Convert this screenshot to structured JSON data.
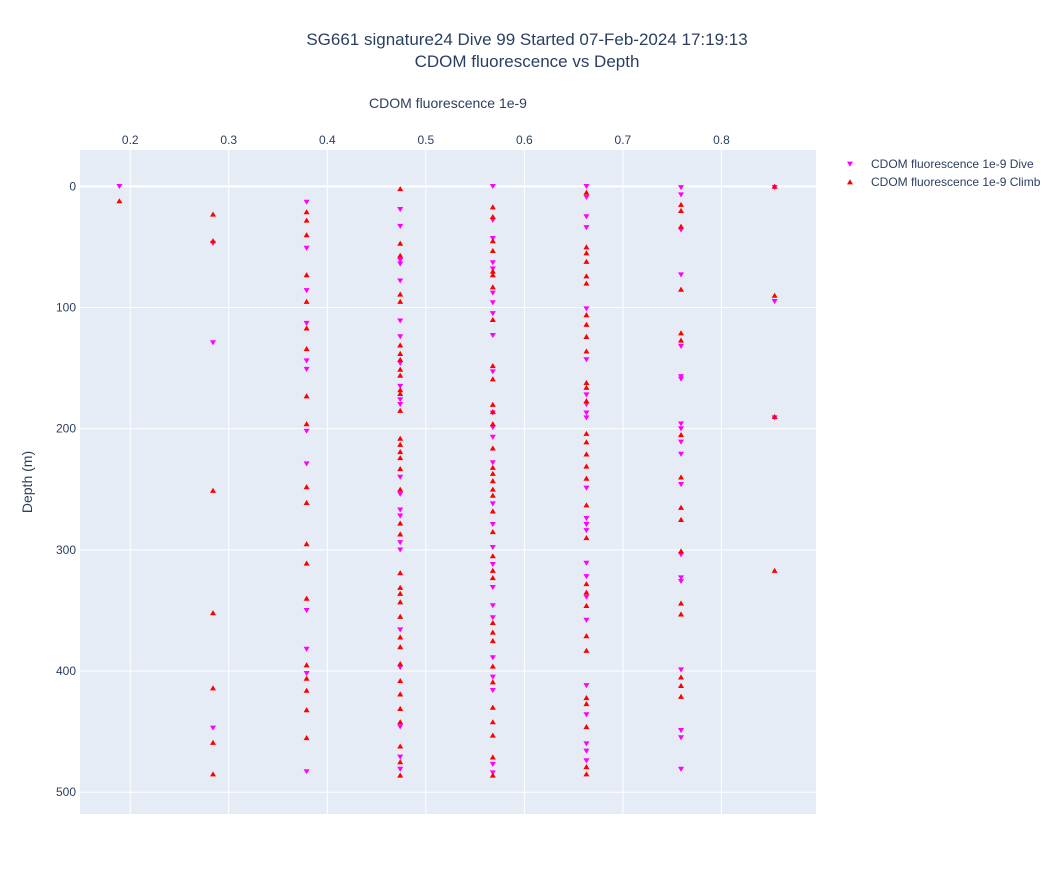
{
  "chart_data": {
    "type": "scatter",
    "title": "SG661 signature24 Dive 99 Started 07-Feb-2024 17:19:13",
    "subtitle": "CDOM fluorescence vs Depth",
    "xlabel": "CDOM fluorescence 1e-9",
    "ylabel": "Depth (m)",
    "xlim": [
      0.149,
      0.896
    ],
    "ylim": [
      518,
      -30
    ],
    "y_reversed": true,
    "x_axis_position": "top",
    "x_ticks": [
      0.2,
      0.3,
      0.4,
      0.5,
      0.6,
      0.7,
      0.8
    ],
    "x_tick_labels": [
      "0.2",
      "0.3",
      "0.4",
      "0.5",
      "0.6",
      "0.7",
      "0.8"
    ],
    "y_ticks": [
      0,
      100,
      200,
      300,
      400,
      500
    ],
    "y_tick_labels": [
      "0",
      "100",
      "200",
      "300",
      "400",
      "500"
    ],
    "grid": true,
    "legend_position": "top-right",
    "series": [
      {
        "name": "CDOM fluorescence 1e-9 Dive",
        "marker": "triangle-down",
        "color": "#ff00ff",
        "points": [
          [
            0.189,
            0
          ],
          [
            0.284,
            47
          ],
          [
            0.284,
            129
          ],
          [
            0.284,
            447
          ],
          [
            0.379,
            13
          ],
          [
            0.379,
            51
          ],
          [
            0.379,
            86
          ],
          [
            0.379,
            113
          ],
          [
            0.379,
            144
          ],
          [
            0.379,
            151
          ],
          [
            0.379,
            202
          ],
          [
            0.379,
            229
          ],
          [
            0.379,
            350
          ],
          [
            0.379,
            382
          ],
          [
            0.379,
            402
          ],
          [
            0.379,
            483
          ],
          [
            0.474,
            19
          ],
          [
            0.474,
            33
          ],
          [
            0.474,
            61
          ],
          [
            0.474,
            64
          ],
          [
            0.474,
            78
          ],
          [
            0.474,
            111
          ],
          [
            0.474,
            124
          ],
          [
            0.474,
            146
          ],
          [
            0.474,
            165
          ],
          [
            0.474,
            176
          ],
          [
            0.474,
            180
          ],
          [
            0.474,
            240
          ],
          [
            0.474,
            254
          ],
          [
            0.474,
            267
          ],
          [
            0.474,
            272
          ],
          [
            0.474,
            294
          ],
          [
            0.474,
            300
          ],
          [
            0.474,
            366
          ],
          [
            0.474,
            397
          ],
          [
            0.474,
            446
          ],
          [
            0.474,
            471
          ],
          [
            0.474,
            481
          ],
          [
            0.568,
            0
          ],
          [
            0.568,
            28
          ],
          [
            0.568,
            43
          ],
          [
            0.568,
            63
          ],
          [
            0.568,
            68
          ],
          [
            0.568,
            88
          ],
          [
            0.568,
            96
          ],
          [
            0.568,
            105
          ],
          [
            0.568,
            123
          ],
          [
            0.568,
            153
          ],
          [
            0.568,
            187
          ],
          [
            0.568,
            199
          ],
          [
            0.568,
            207
          ],
          [
            0.568,
            228
          ],
          [
            0.568,
            262
          ],
          [
            0.568,
            279
          ],
          [
            0.568,
            298
          ],
          [
            0.568,
            312
          ],
          [
            0.568,
            331
          ],
          [
            0.568,
            346
          ],
          [
            0.568,
            356
          ],
          [
            0.568,
            389
          ],
          [
            0.568,
            405
          ],
          [
            0.568,
            416
          ],
          [
            0.568,
            477
          ],
          [
            0.568,
            484
          ],
          [
            0.663,
            0
          ],
          [
            0.663,
            9
          ],
          [
            0.663,
            25
          ],
          [
            0.663,
            34
          ],
          [
            0.663,
            101
          ],
          [
            0.663,
            143
          ],
          [
            0.663,
            172
          ],
          [
            0.663,
            180
          ],
          [
            0.663,
            187
          ],
          [
            0.663,
            191
          ],
          [
            0.663,
            249
          ],
          [
            0.663,
            274
          ],
          [
            0.663,
            279
          ],
          [
            0.663,
            284
          ],
          [
            0.663,
            311
          ],
          [
            0.663,
            322
          ],
          [
            0.663,
            339
          ],
          [
            0.663,
            358
          ],
          [
            0.663,
            412
          ],
          [
            0.663,
            436
          ],
          [
            0.663,
            460
          ],
          [
            0.663,
            466
          ],
          [
            0.663,
            474
          ],
          [
            0.759,
            1
          ],
          [
            0.759,
            7
          ],
          [
            0.759,
            36
          ],
          [
            0.759,
            73
          ],
          [
            0.759,
            132
          ],
          [
            0.759,
            157
          ],
          [
            0.759,
            159
          ],
          [
            0.759,
            196
          ],
          [
            0.759,
            200
          ],
          [
            0.759,
            211
          ],
          [
            0.759,
            221
          ],
          [
            0.759,
            246
          ],
          [
            0.759,
            304
          ],
          [
            0.759,
            323
          ],
          [
            0.759,
            326
          ],
          [
            0.759,
            399
          ],
          [
            0.759,
            449
          ],
          [
            0.759,
            455
          ],
          [
            0.759,
            481
          ],
          [
            0.854,
            1
          ],
          [
            0.854,
            95
          ],
          [
            0.854,
            191
          ]
        ]
      },
      {
        "name": "CDOM fluorescence 1e-9 Climb",
        "marker": "triangle-up",
        "color": "#ff0000",
        "points": [
          [
            0.189,
            12
          ],
          [
            0.284,
            23
          ],
          [
            0.284,
            45
          ],
          [
            0.284,
            251
          ],
          [
            0.284,
            352
          ],
          [
            0.284,
            414
          ],
          [
            0.284,
            459
          ],
          [
            0.284,
            485
          ],
          [
            0.379,
            21
          ],
          [
            0.379,
            28
          ],
          [
            0.379,
            40
          ],
          [
            0.379,
            73
          ],
          [
            0.379,
            95
          ],
          [
            0.379,
            117
          ],
          [
            0.379,
            134
          ],
          [
            0.379,
            173
          ],
          [
            0.379,
            196
          ],
          [
            0.379,
            248
          ],
          [
            0.379,
            261
          ],
          [
            0.379,
            295
          ],
          [
            0.379,
            311
          ],
          [
            0.379,
            340
          ],
          [
            0.379,
            395
          ],
          [
            0.379,
            406
          ],
          [
            0.379,
            416
          ],
          [
            0.379,
            432
          ],
          [
            0.379,
            455
          ],
          [
            0.474,
            2
          ],
          [
            0.474,
            47
          ],
          [
            0.474,
            57
          ],
          [
            0.474,
            89
          ],
          [
            0.474,
            95
          ],
          [
            0.474,
            131
          ],
          [
            0.474,
            138
          ],
          [
            0.474,
            143
          ],
          [
            0.474,
            151
          ],
          [
            0.474,
            156
          ],
          [
            0.474,
            168
          ],
          [
            0.474,
            171
          ],
          [
            0.474,
            185
          ],
          [
            0.474,
            208
          ],
          [
            0.474,
            213
          ],
          [
            0.474,
            219
          ],
          [
            0.474,
            224
          ],
          [
            0.474,
            233
          ],
          [
            0.474,
            250
          ],
          [
            0.474,
            278
          ],
          [
            0.474,
            287
          ],
          [
            0.474,
            319
          ],
          [
            0.474,
            331
          ],
          [
            0.474,
            336
          ],
          [
            0.474,
            343
          ],
          [
            0.474,
            355
          ],
          [
            0.474,
            372
          ],
          [
            0.474,
            380
          ],
          [
            0.474,
            394
          ],
          [
            0.474,
            408
          ],
          [
            0.474,
            419
          ],
          [
            0.474,
            431
          ],
          [
            0.474,
            442
          ],
          [
            0.474,
            462
          ],
          [
            0.474,
            475
          ],
          [
            0.474,
            486
          ],
          [
            0.568,
            17
          ],
          [
            0.568,
            25
          ],
          [
            0.568,
            45
          ],
          [
            0.568,
            53
          ],
          [
            0.568,
            70
          ],
          [
            0.568,
            73
          ],
          [
            0.568,
            83
          ],
          [
            0.568,
            110
          ],
          [
            0.568,
            148
          ],
          [
            0.568,
            159
          ],
          [
            0.568,
            180
          ],
          [
            0.568,
            186
          ],
          [
            0.568,
            196
          ],
          [
            0.568,
            216
          ],
          [
            0.568,
            232
          ],
          [
            0.568,
            237
          ],
          [
            0.568,
            243
          ],
          [
            0.568,
            250
          ],
          [
            0.568,
            255
          ],
          [
            0.568,
            268
          ],
          [
            0.568,
            285
          ],
          [
            0.568,
            305
          ],
          [
            0.568,
            317
          ],
          [
            0.568,
            323
          ],
          [
            0.568,
            360
          ],
          [
            0.568,
            368
          ],
          [
            0.568,
            375
          ],
          [
            0.568,
            396
          ],
          [
            0.568,
            409
          ],
          [
            0.568,
            430
          ],
          [
            0.568,
            442
          ],
          [
            0.568,
            453
          ],
          [
            0.568,
            471
          ],
          [
            0.568,
            486
          ],
          [
            0.663,
            5
          ],
          [
            0.663,
            50
          ],
          [
            0.663,
            55
          ],
          [
            0.663,
            62
          ],
          [
            0.663,
            74
          ],
          [
            0.663,
            80
          ],
          [
            0.663,
            106
          ],
          [
            0.663,
            114
          ],
          [
            0.663,
            124
          ],
          [
            0.663,
            136
          ],
          [
            0.663,
            162
          ],
          [
            0.663,
            166
          ],
          [
            0.663,
            177
          ],
          [
            0.663,
            204
          ],
          [
            0.663,
            211
          ],
          [
            0.663,
            221
          ],
          [
            0.663,
            231
          ],
          [
            0.663,
            241
          ],
          [
            0.663,
            263
          ],
          [
            0.663,
            290
          ],
          [
            0.663,
            328
          ],
          [
            0.663,
            335
          ],
          [
            0.663,
            346
          ],
          [
            0.663,
            371
          ],
          [
            0.663,
            383
          ],
          [
            0.663,
            422
          ],
          [
            0.663,
            427
          ],
          [
            0.663,
            446
          ],
          [
            0.663,
            479
          ],
          [
            0.663,
            485
          ],
          [
            0.759,
            15
          ],
          [
            0.759,
            20
          ],
          [
            0.759,
            33
          ],
          [
            0.759,
            85
          ],
          [
            0.759,
            121
          ],
          [
            0.759,
            127
          ],
          [
            0.759,
            205
          ],
          [
            0.759,
            240
          ],
          [
            0.759,
            265
          ],
          [
            0.759,
            275
          ],
          [
            0.759,
            301
          ],
          [
            0.759,
            344
          ],
          [
            0.759,
            353
          ],
          [
            0.759,
            405
          ],
          [
            0.759,
            412
          ],
          [
            0.759,
            421
          ]
        ]
      }
    ]
  },
  "extra_climb_points": [
    [
      0.854,
      0
    ],
    [
      0.854,
      90
    ],
    [
      0.854,
      190
    ],
    [
      0.854,
      317
    ]
  ]
}
